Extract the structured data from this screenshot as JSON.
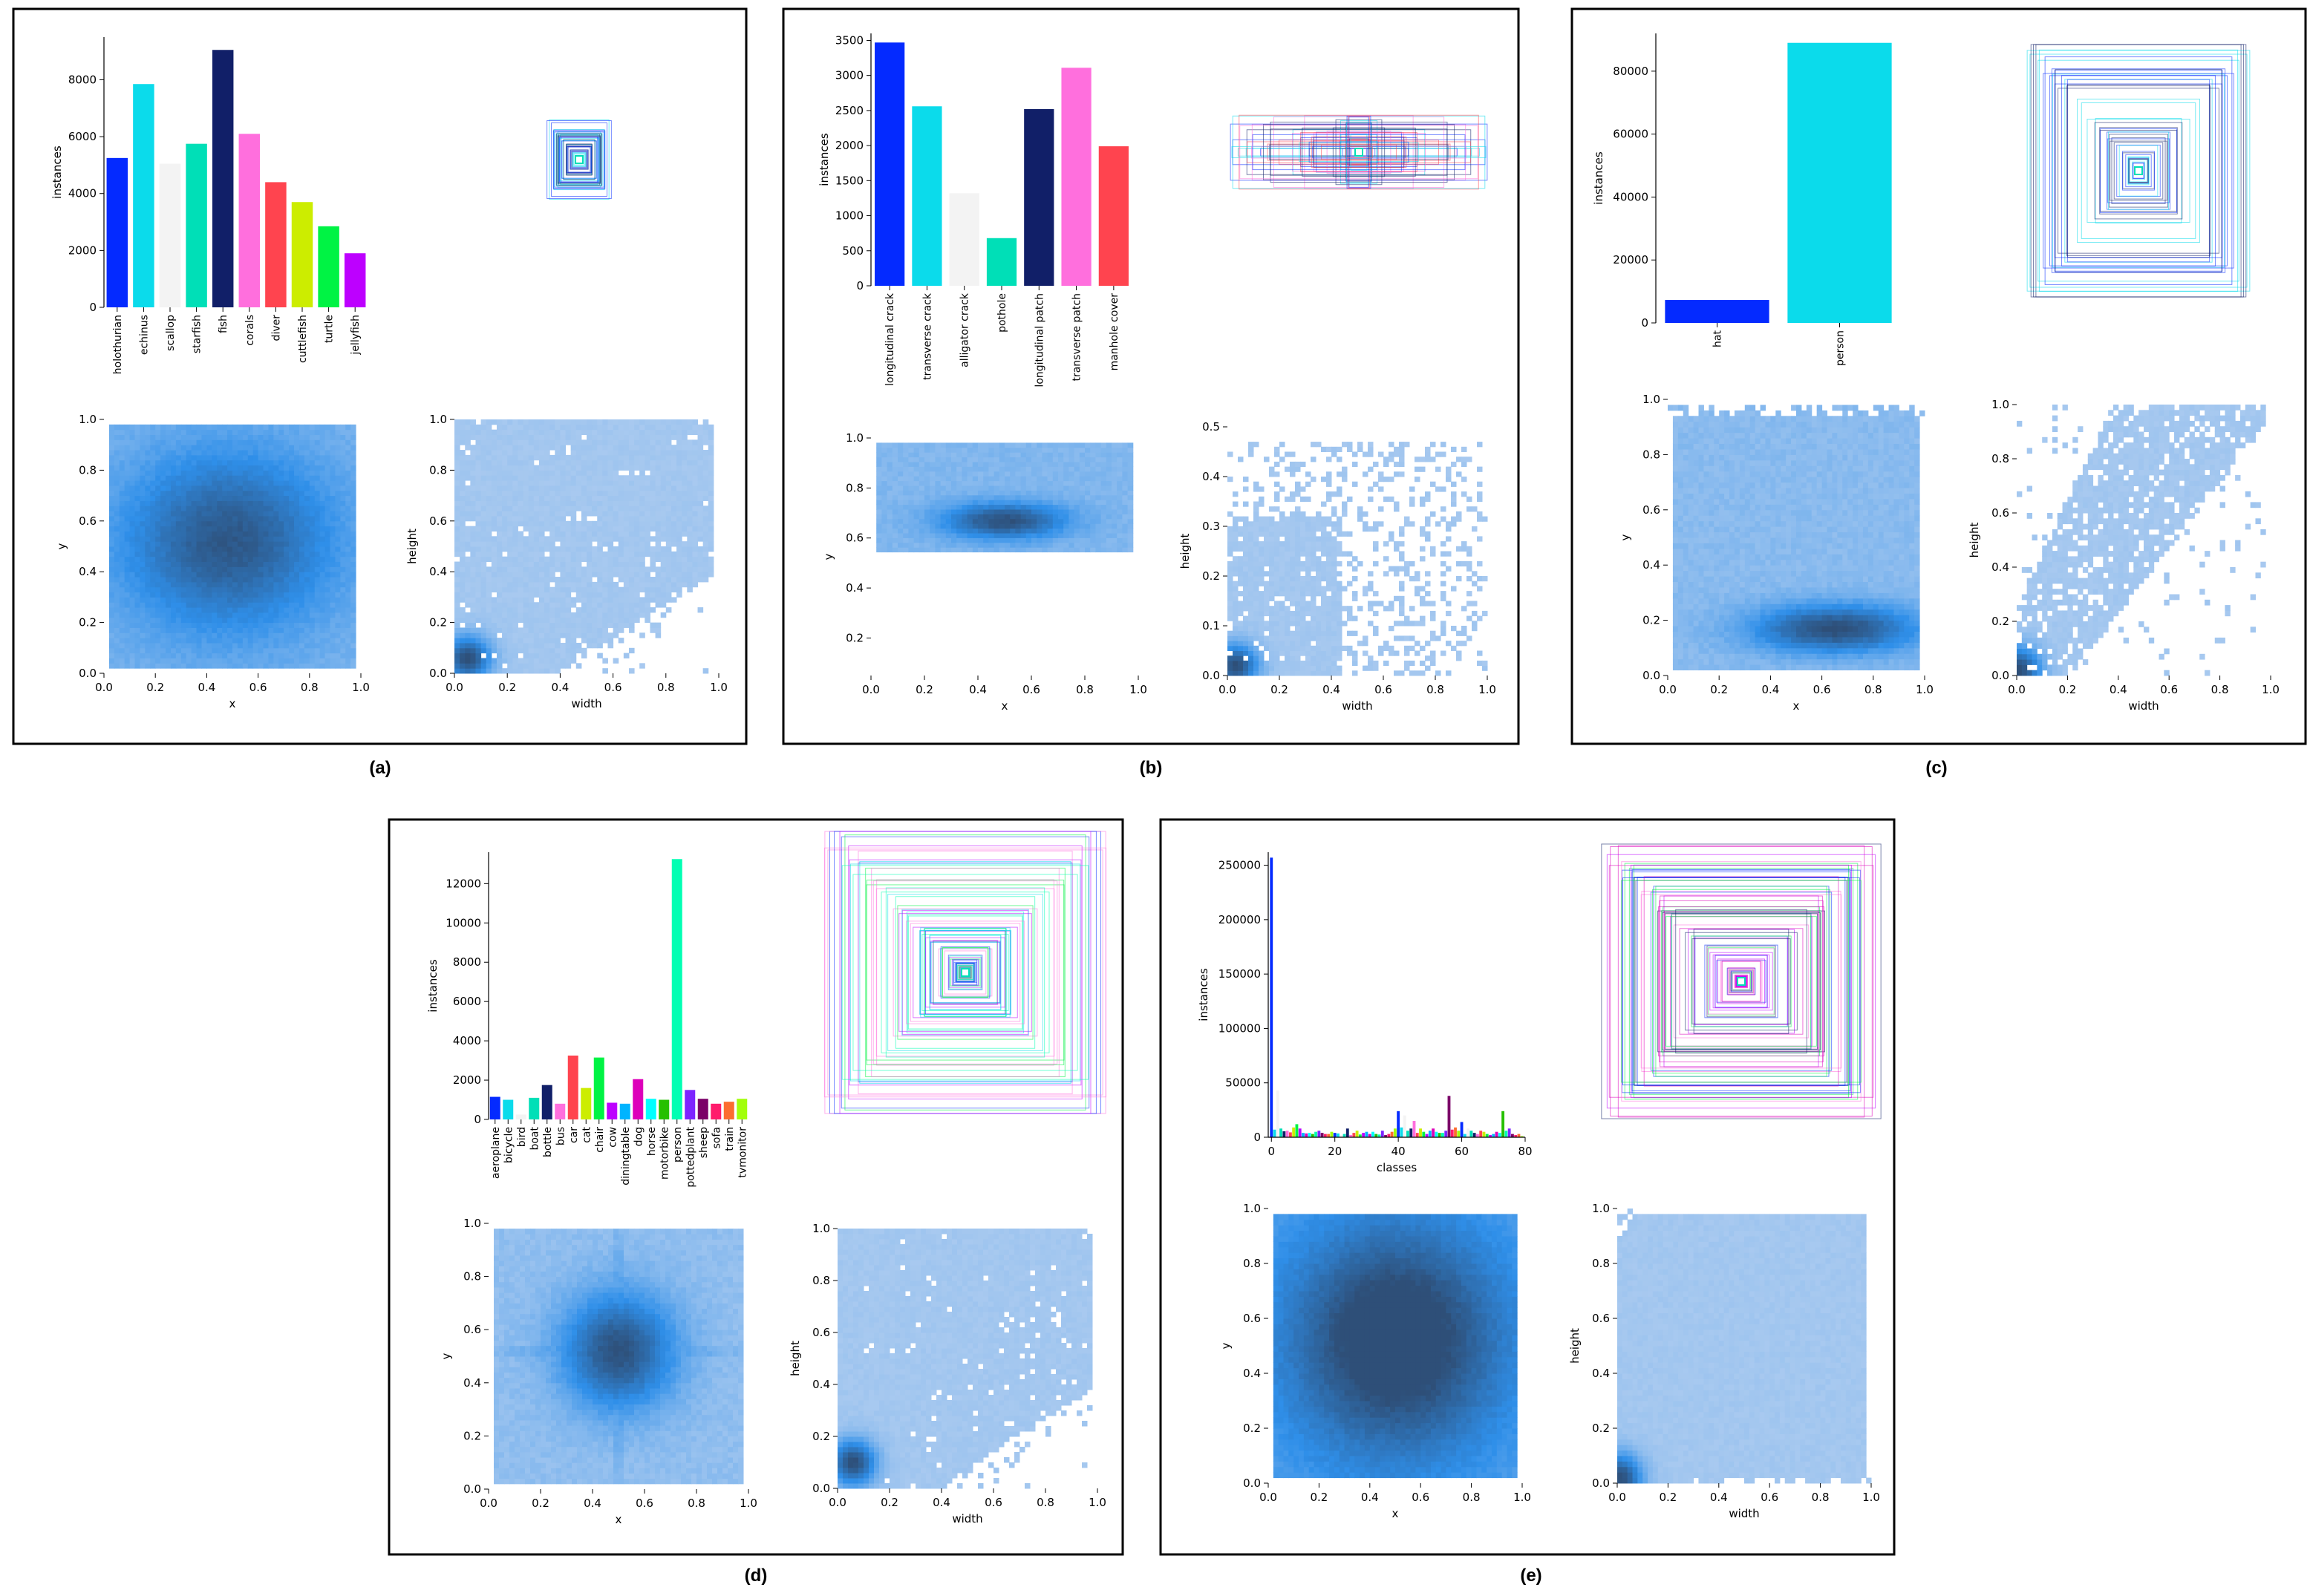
{
  "colors": {
    "palette": [
      "#042aff",
      "#0bdbeb",
      "#f3f3f3",
      "#00dfb7",
      "#111f68",
      "#ff6fdd",
      "#ff444f",
      "#cced00",
      "#00f344",
      "#bd00ff",
      "#00b4ff",
      "#dd00ba",
      "#00ffff",
      "#26c000",
      "#01ffb3",
      "#7d24ff",
      "#7b0068",
      "#ff1b6c",
      "#fc6d2f",
      "#a2ff0b"
    ],
    "hist_low": "#b0cdf0",
    "hist_mid": "#2f8fe9",
    "hist_high": "#2e4f78"
  },
  "panels": [
    {
      "label": "(a)",
      "bar": {
        "type": "bar",
        "ylabel": "instances",
        "categories": [
          "holothurian",
          "echinus",
          "scallop",
          "starfish",
          "fish",
          "corals",
          "diver",
          "cuttlefish",
          "turtle",
          "jellyfish"
        ],
        "values": [
          5250,
          7850,
          5050,
          5750,
          9050,
          6100,
          4400,
          3700,
          2850,
          1900
        ],
        "ylim": [
          0,
          9500
        ],
        "yticks": [
          0,
          2000,
          4000,
          6000,
          8000
        ],
        "ytick_labels": [
          "0",
          "2000",
          "4000",
          "6000",
          "8000"
        ],
        "rotate_xticks": true
      },
      "xy": {
        "type": "heatmap",
        "xlabel": "x",
        "ylabel": "y",
        "xlim": [
          0,
          1
        ],
        "ylim": [
          0,
          1
        ],
        "xticks": [
          "0.0",
          "0.2",
          "0.4",
          "0.6",
          "0.8",
          "1.0"
        ],
        "yticks": [
          "0.0",
          "0.2",
          "0.4",
          "0.6",
          "0.8",
          "1.0"
        ],
        "center": [
          0.48,
          0.52
        ],
        "spread": [
          0.28,
          0.24
        ],
        "peak": 0.8,
        "base": 0.35,
        "cross": 0.0
      },
      "wh": {
        "type": "heatmap",
        "xlabel": "width",
        "ylabel": "height",
        "xlim": [
          0,
          1
        ],
        "ylim": [
          0,
          1
        ],
        "xticks": [
          "0.0",
          "0.2",
          "0.4",
          "0.6",
          "0.8",
          "1.0"
        ],
        "yticks": [
          "0.0",
          "0.2",
          "0.4",
          "0.6",
          "0.8",
          "1.0"
        ],
        "hot": [
          0.05,
          0.06
        ],
        "max_y": 1.0
      }
    },
    {
      "label": "(b)",
      "bar": {
        "type": "bar",
        "ylabel": "instances",
        "categories": [
          "longitudinal crack",
          "transverse crack",
          "alligator crack",
          "pothole",
          "longitudinal patch",
          "transverse patch",
          "manhole cover"
        ],
        "values": [
          3470,
          2560,
          1320,
          680,
          2520,
          3110,
          1990
        ],
        "ylim": [
          0,
          3600
        ],
        "yticks": [
          0,
          500,
          1000,
          1500,
          2000,
          2500,
          3000,
          3500
        ],
        "ytick_labels": [
          "0",
          "500",
          "1000",
          "1500",
          "2000",
          "2500",
          "3000",
          "3500"
        ],
        "rotate_xticks": true
      },
      "xy": {
        "type": "heatmap",
        "xlabel": "x",
        "ylabel": "y",
        "xlim": [
          0,
          1
        ],
        "ylim": [
          0.05,
          1
        ],
        "xticks": [
          "0.0",
          "0.2",
          "0.4",
          "0.6",
          "0.8",
          "1.0"
        ],
        "yticks": [
          "0.2",
          "0.4",
          "0.6",
          "0.8",
          "1.0"
        ],
        "ytick_values": [
          0.2,
          0.4,
          0.6,
          0.8,
          1.0
        ],
        "center": [
          0.5,
          0.67
        ],
        "spread": [
          0.16,
          0.05
        ],
        "peak": 0.9,
        "base": 0.3,
        "band": [
          0.55,
          0.98
        ]
      },
      "wh": {
        "type": "heatmap",
        "xlabel": "width",
        "ylabel": "height",
        "xlim": [
          0,
          1
        ],
        "ylim": [
          0,
          0.5
        ],
        "xticks": [
          "0.0",
          "0.2",
          "0.4",
          "0.6",
          "0.8",
          "1.0"
        ],
        "yticks": [
          "0.0",
          "0.1",
          "0.2",
          "0.3",
          "0.4",
          "0.5"
        ],
        "ytick_values": [
          0,
          0.1,
          0.2,
          0.3,
          0.4,
          0.5
        ],
        "hot": [
          0.03,
          0.02
        ],
        "max_y": 0.48
      }
    },
    {
      "label": "(c)",
      "bar": {
        "type": "bar",
        "ylabel": "instances",
        "categories": [
          "hat",
          "person"
        ],
        "values": [
          7300,
          89000
        ],
        "ylim": [
          0,
          92000
        ],
        "yticks": [
          0,
          20000,
          40000,
          60000,
          80000
        ],
        "ytick_labels": [
          "0",
          "20000",
          "40000",
          "60000",
          "80000"
        ],
        "rotate_xticks": true
      },
      "xy": {
        "type": "heatmap",
        "xlabel": "x",
        "ylabel": "y",
        "xlim": [
          0,
          1
        ],
        "ylim": [
          0,
          1
        ],
        "xticks": [
          "0.0",
          "0.2",
          "0.4",
          "0.6",
          "0.8",
          "1.0"
        ],
        "yticks": [
          "0.0",
          "0.2",
          "0.4",
          "0.6",
          "0.8",
          "1.0"
        ],
        "center": [
          0.65,
          0.17
        ],
        "spread": [
          0.22,
          0.06
        ],
        "peak": 0.95,
        "base": 0.25,
        "cross": 0.0
      },
      "wh": {
        "type": "heatmap",
        "xlabel": "width",
        "ylabel": "height",
        "xlim": [
          0,
          1
        ],
        "ylim": [
          0,
          1
        ],
        "xticks": [
          "0.0",
          "0.2",
          "0.4",
          "0.6",
          "0.8",
          "1.0"
        ],
        "yticks": [
          "0.0",
          "0.2",
          "0.4",
          "0.6",
          "0.8",
          "1.0"
        ],
        "hot": [
          0.01,
          0.02
        ],
        "max_y": 0.95
      }
    },
    {
      "label": "(d)",
      "bar": {
        "type": "bar",
        "ylabel": "instances",
        "categories": [
          "aeroplane",
          "bicycle",
          "bird",
          "boat",
          "bottle",
          "bus",
          "car",
          "cat",
          "chair",
          "cow",
          "diningtable",
          "dog",
          "horse",
          "motorbike",
          "person",
          "pottedplant",
          "sheep",
          "sofa",
          "train",
          "tvmonitor"
        ],
        "values": [
          1150,
          1000,
          250,
          1100,
          1750,
          800,
          3250,
          1600,
          3150,
          850,
          800,
          2050,
          1050,
          1000,
          13250,
          1500,
          1050,
          800,
          900,
          1050
        ],
        "ylim": [
          0,
          13600
        ],
        "yticks": [
          0,
          2000,
          4000,
          6000,
          8000,
          10000,
          12000
        ],
        "ytick_labels": [
          "0",
          "2000",
          "4000",
          "6000",
          "8000",
          "10000",
          "12000"
        ],
        "rotate_xticks": true
      },
      "xy": {
        "type": "heatmap",
        "xlabel": "x",
        "ylabel": "y",
        "xlim": [
          0,
          1
        ],
        "ylim": [
          0,
          1
        ],
        "xticks": [
          "0.0",
          "0.2",
          "0.4",
          "0.6",
          "0.8",
          "1.0"
        ],
        "yticks": [
          "0.0",
          "0.2",
          "0.4",
          "0.6",
          "0.8",
          "1.0"
        ],
        "center": [
          0.5,
          0.52
        ],
        "spread": [
          0.15,
          0.15
        ],
        "peak": 0.95,
        "base": 0.2,
        "cross": 0.6
      },
      "wh": {
        "type": "heatmap",
        "xlabel": "width",
        "ylabel": "height",
        "xlim": [
          0,
          1
        ],
        "ylim": [
          0,
          1
        ],
        "xticks": [
          "0.0",
          "0.2",
          "0.4",
          "0.6",
          "0.8",
          "1.0"
        ],
        "yticks": [
          "0.0",
          "0.2",
          "0.4",
          "0.6",
          "0.8",
          "1.0"
        ],
        "hot": [
          0.06,
          0.1
        ],
        "max_y": 1.0
      }
    },
    {
      "label": "(e)",
      "bar": {
        "type": "bar",
        "ylabel": "instances",
        "xlabel": "classes",
        "numeric_x": true,
        "xlim": [
          -1,
          80
        ],
        "xticks": [
          0,
          20,
          40,
          60,
          80
        ],
        "categories": [],
        "values": [
          257000,
          7000,
          43000,
          8000,
          5500,
          6000,
          4500,
          9000,
          12000,
          8000,
          4000,
          3500,
          4000,
          3000,
          5000,
          6000,
          4000,
          3000,
          3000,
          5000,
          4000,
          3500,
          2000,
          3000,
          8000,
          2000,
          4000,
          6000,
          2500,
          4000,
          5000,
          3000,
          5000,
          3000,
          2500,
          6000,
          2000,
          3000,
          5000,
          8000,
          24000,
          9000,
          20000,
          6000,
          8000,
          15000,
          4000,
          8000,
          5000,
          3000,
          6000,
          8000,
          5000,
          4000,
          4000,
          6000,
          38000,
          7000,
          9000,
          6000,
          14000,
          3000,
          8000,
          6000,
          4000,
          3000,
          6000,
          5000,
          3000,
          2000,
          3000,
          5000,
          4000,
          24000,
          6000,
          8000,
          3000,
          2000,
          3000,
          1000
        ],
        "ylim": [
          0,
          262000
        ],
        "yticks": [
          0,
          50000,
          100000,
          150000,
          200000,
          250000
        ],
        "ytick_labels": [
          "0",
          "50000",
          "100000",
          "150000",
          "200000",
          "250000"
        ]
      },
      "xy": {
        "type": "heatmap",
        "xlabel": "x",
        "ylabel": "y",
        "xlim": [
          0,
          1
        ],
        "ylim": [
          0,
          1
        ],
        "xticks": [
          "0.0",
          "0.2",
          "0.4",
          "0.6",
          "0.8",
          "1.0"
        ],
        "yticks": [
          "0.0",
          "0.2",
          "0.4",
          "0.6",
          "0.8",
          "1.0"
        ],
        "center": [
          0.5,
          0.52
        ],
        "spread": [
          0.3,
          0.3
        ],
        "peak": 0.95,
        "base": 0.55,
        "cross": 0.6
      },
      "wh": {
        "type": "heatmap",
        "xlabel": "width",
        "ylabel": "height",
        "xlim": [
          0,
          1
        ],
        "ylim": [
          0,
          1
        ],
        "xticks": [
          "0.0",
          "0.2",
          "0.4",
          "0.6",
          "0.8",
          "1.0"
        ],
        "yticks": [
          "0.0",
          "0.2",
          "0.4",
          "0.6",
          "0.8",
          "1.0"
        ],
        "hot": [
          0.01,
          0.02
        ],
        "max_y": 1.0,
        "full": true
      }
    }
  ]
}
